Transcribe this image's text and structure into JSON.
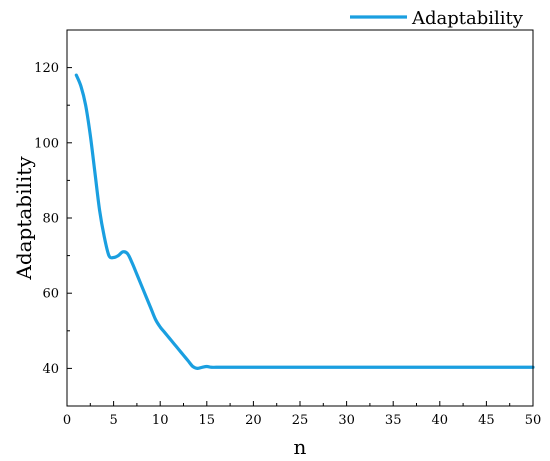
{
  "chart_data": {
    "type": "line",
    "title": "",
    "xlabel": "n",
    "ylabel": "Adaptability",
    "xlim": [
      0,
      50
    ],
    "ylim": [
      30,
      130
    ],
    "xticks": [
      0,
      5,
      10,
      15,
      20,
      25,
      30,
      35,
      40,
      45,
      50
    ],
    "yticks": [
      40,
      60,
      80,
      100,
      120
    ],
    "grid": false,
    "legend_position": "top-right",
    "series": [
      {
        "name": "Adaptability",
        "color": "#1a9fe0",
        "x": [
          1,
          1.5,
          2,
          2.5,
          3,
          3.5,
          4,
          4.5,
          5,
          5.5,
          6,
          6.5,
          7,
          7.5,
          8,
          8.5,
          9,
          9.5,
          10,
          10.5,
          11,
          11.5,
          12,
          12.5,
          13,
          13.5,
          14,
          14.5,
          15,
          15.5,
          16,
          17,
          20,
          25,
          30,
          35,
          40,
          45,
          50
        ],
        "y": [
          118,
          115,
          110,
          102,
          92,
          82,
          75,
          70,
          69.5,
          70,
          71,
          70.5,
          68,
          65,
          62,
          59,
          56,
          53,
          51,
          49.5,
          48,
          46.5,
          45,
          43.5,
          42,
          40.5,
          40,
          40.3,
          40.5,
          40.3,
          40.3,
          40.3,
          40.3,
          40.3,
          40.3,
          40.3,
          40.3,
          40.3,
          40.3
        ]
      }
    ]
  }
}
